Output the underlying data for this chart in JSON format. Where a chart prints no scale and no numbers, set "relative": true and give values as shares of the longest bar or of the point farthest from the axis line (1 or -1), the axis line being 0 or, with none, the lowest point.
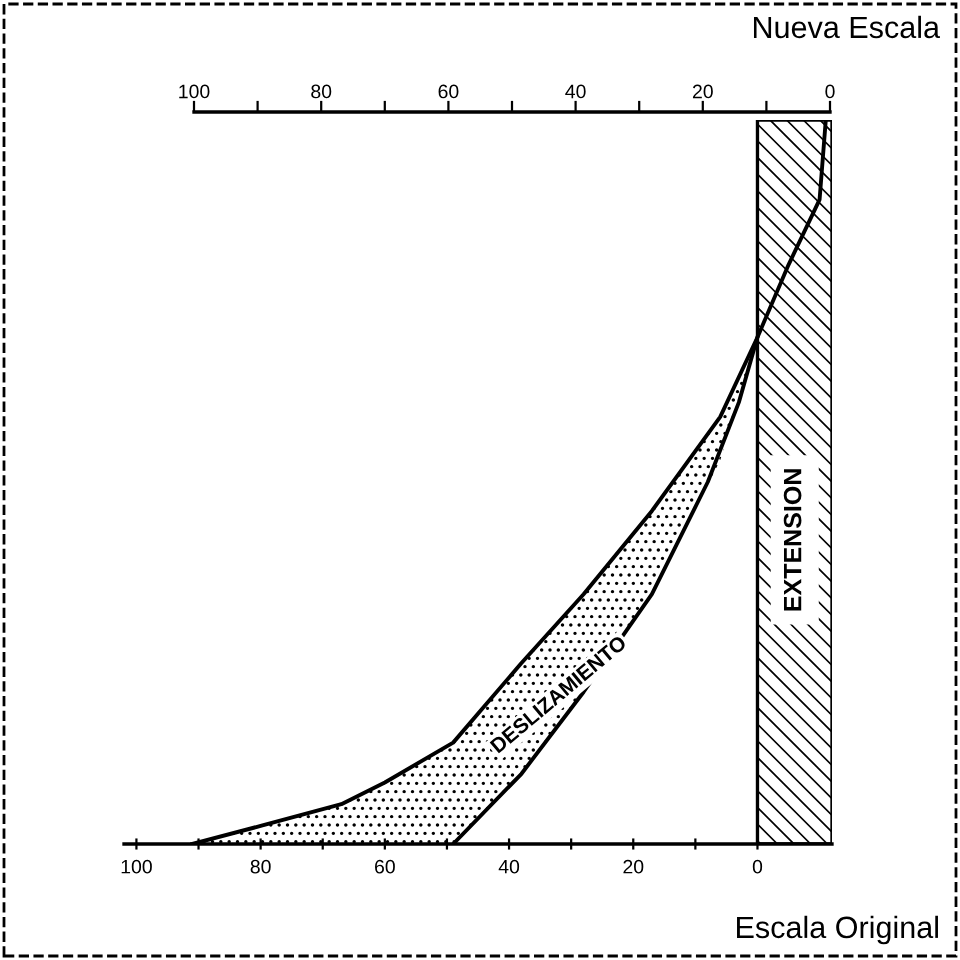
{
  "chart_data": {
    "type": "line",
    "relative": true,
    "xlabel": "Escala Original",
    "x2label": "Nueva Escala",
    "xlim": [
      102,
      -12
    ],
    "xticks": [
      100,
      {
        "value": 90,
        "label": null
      },
      80,
      {
        "value": 70,
        "label": null
      },
      60,
      {
        "value": 50,
        "label": null
      },
      40,
      {
        "value": 30,
        "label": null
      },
      20,
      {
        "value": 10,
        "label": null
      },
      0
    ],
    "x2lim": [
      100,
      0
    ],
    "x2ticks": [
      100,
      {
        "value": 90,
        "label": null
      },
      80,
      {
        "value": 70,
        "label": null
      },
      60,
      {
        "value": 50,
        "label": null
      },
      40,
      {
        "value": 30,
        "label": null
      },
      20,
      {
        "value": 10,
        "label": null
      },
      0
    ],
    "series": [
      {
        "color": "#000000",
        "x": [
          91,
          80,
          67,
          60,
          49,
          38,
          28,
          17,
          6,
          0,
          -5,
          -10,
          -11
        ],
        "values": [
          0,
          0.025,
          0.055,
          0.085,
          0.14,
          0.25,
          0.345,
          0.46,
          0.59,
          0.7,
          0.8,
          0.89,
          1
        ],
        "lower": [
          0,
          0,
          0,
          0,
          0,
          0.097,
          0.21,
          0.345,
          0.53,
          0.7,
          null,
          null,
          null
        ],
        "upper": [
          0,
          0.025,
          0.055,
          0.085,
          0.14,
          0.25,
          0.345,
          0.46,
          0.59,
          0.7,
          null,
          null,
          null
        ]
      },
      {
        "color": "#000000",
        "x": [
          49,
          38,
          28,
          17,
          8,
          3,
          0
        ],
        "values": [
          0,
          0.097,
          0.21,
          0.345,
          0.5,
          0.61,
          0.7
        ]
      }
    ],
    "bands": [
      {
        "axis": "x",
        "from": 0,
        "to": -12,
        "label": "EXTENSION",
        "color": "#000000"
      }
    ],
    "annotations": [
      "DESLIZAMIENTO"
    ],
    "grid": false,
    "legend": false,
    "marker": "none",
    "line_style": "solid"
  }
}
